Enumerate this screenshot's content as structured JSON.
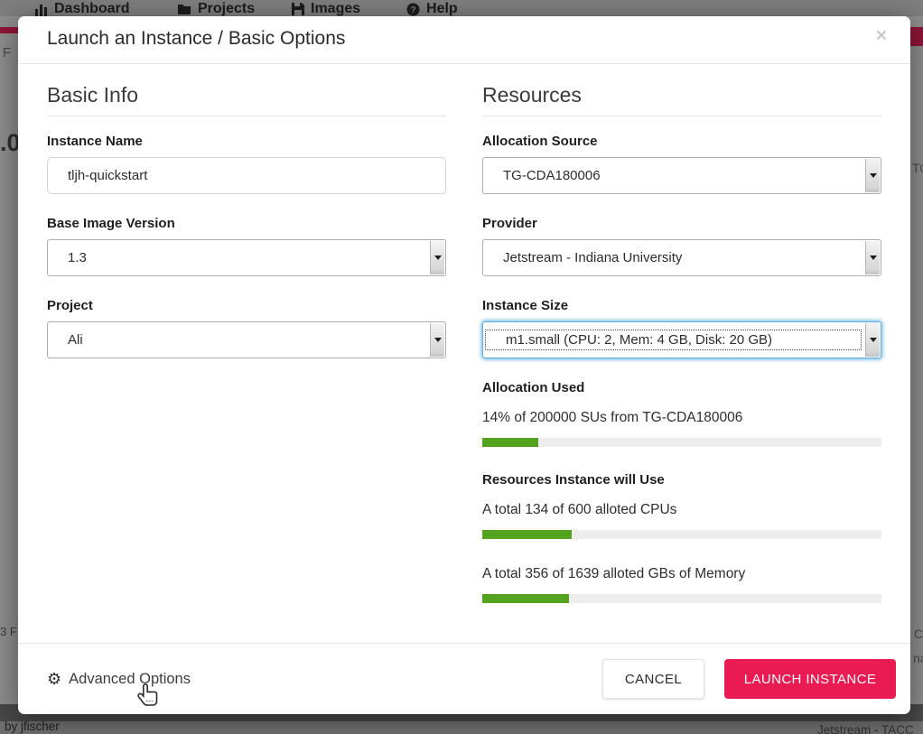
{
  "background": {
    "navbar": {
      "items": [
        {
          "label": "Dashboard",
          "icon": "bar-chart-icon"
        },
        {
          "label": "Projects",
          "icon": "folder-icon"
        },
        {
          "label": "Images",
          "icon": "floppy-icon"
        },
        {
          "label": "Help",
          "icon": "help-circle-icon"
        }
      ]
    },
    "fragments": {
      "left_top": "F",
      "left_mid": ".0",
      "left_bottom": "3 F",
      "right_top": "TO",
      "right_mid": "C",
      "right_mid2": "na",
      "bottom_left": "by jfischer",
      "bottom_right": "Jetstream - TACC"
    }
  },
  "modal": {
    "title": "Launch an Instance / Basic Options",
    "close_icon": "×",
    "basic_info": {
      "heading": "Basic Info",
      "instance_name": {
        "label": "Instance Name",
        "value": "tljh-quickstart"
      },
      "base_image_version": {
        "label": "Base Image Version",
        "value": "1.3"
      },
      "project": {
        "label": "Project",
        "value": "Ali"
      }
    },
    "resources": {
      "heading": "Resources",
      "allocation_source": {
        "label": "Allocation Source",
        "value": "TG-CDA180006"
      },
      "provider": {
        "label": "Provider",
        "value": "Jetstream - Indiana University"
      },
      "instance_size": {
        "label": "Instance Size",
        "value": "m1.small (CPU: 2, Mem: 4 GB, Disk: 20 GB)",
        "focused": true
      },
      "allocation_used": {
        "label": "Allocation Used",
        "text": "14% of 200000 SUs from TG-CDA180006",
        "percent": 14
      },
      "usage": {
        "label": "Resources Instance will Use",
        "cpu_text": "A total 134 of 600 alloted CPUs",
        "cpu_percent": 22.3,
        "mem_text": "A total 356 of 1639 alloted GBs of Memory",
        "mem_percent": 21.7
      }
    },
    "footer": {
      "advanced_options": "Advanced Options",
      "gear_icon": "⚙",
      "cancel": "CANCEL",
      "launch": "LAUNCH INSTANCE"
    }
  },
  "colors": {
    "accent_pink": "#ea1a52",
    "progress_green": "#54a31e",
    "brand_maroon": "#8f1537",
    "focus_blue": "#5fb1e2"
  }
}
